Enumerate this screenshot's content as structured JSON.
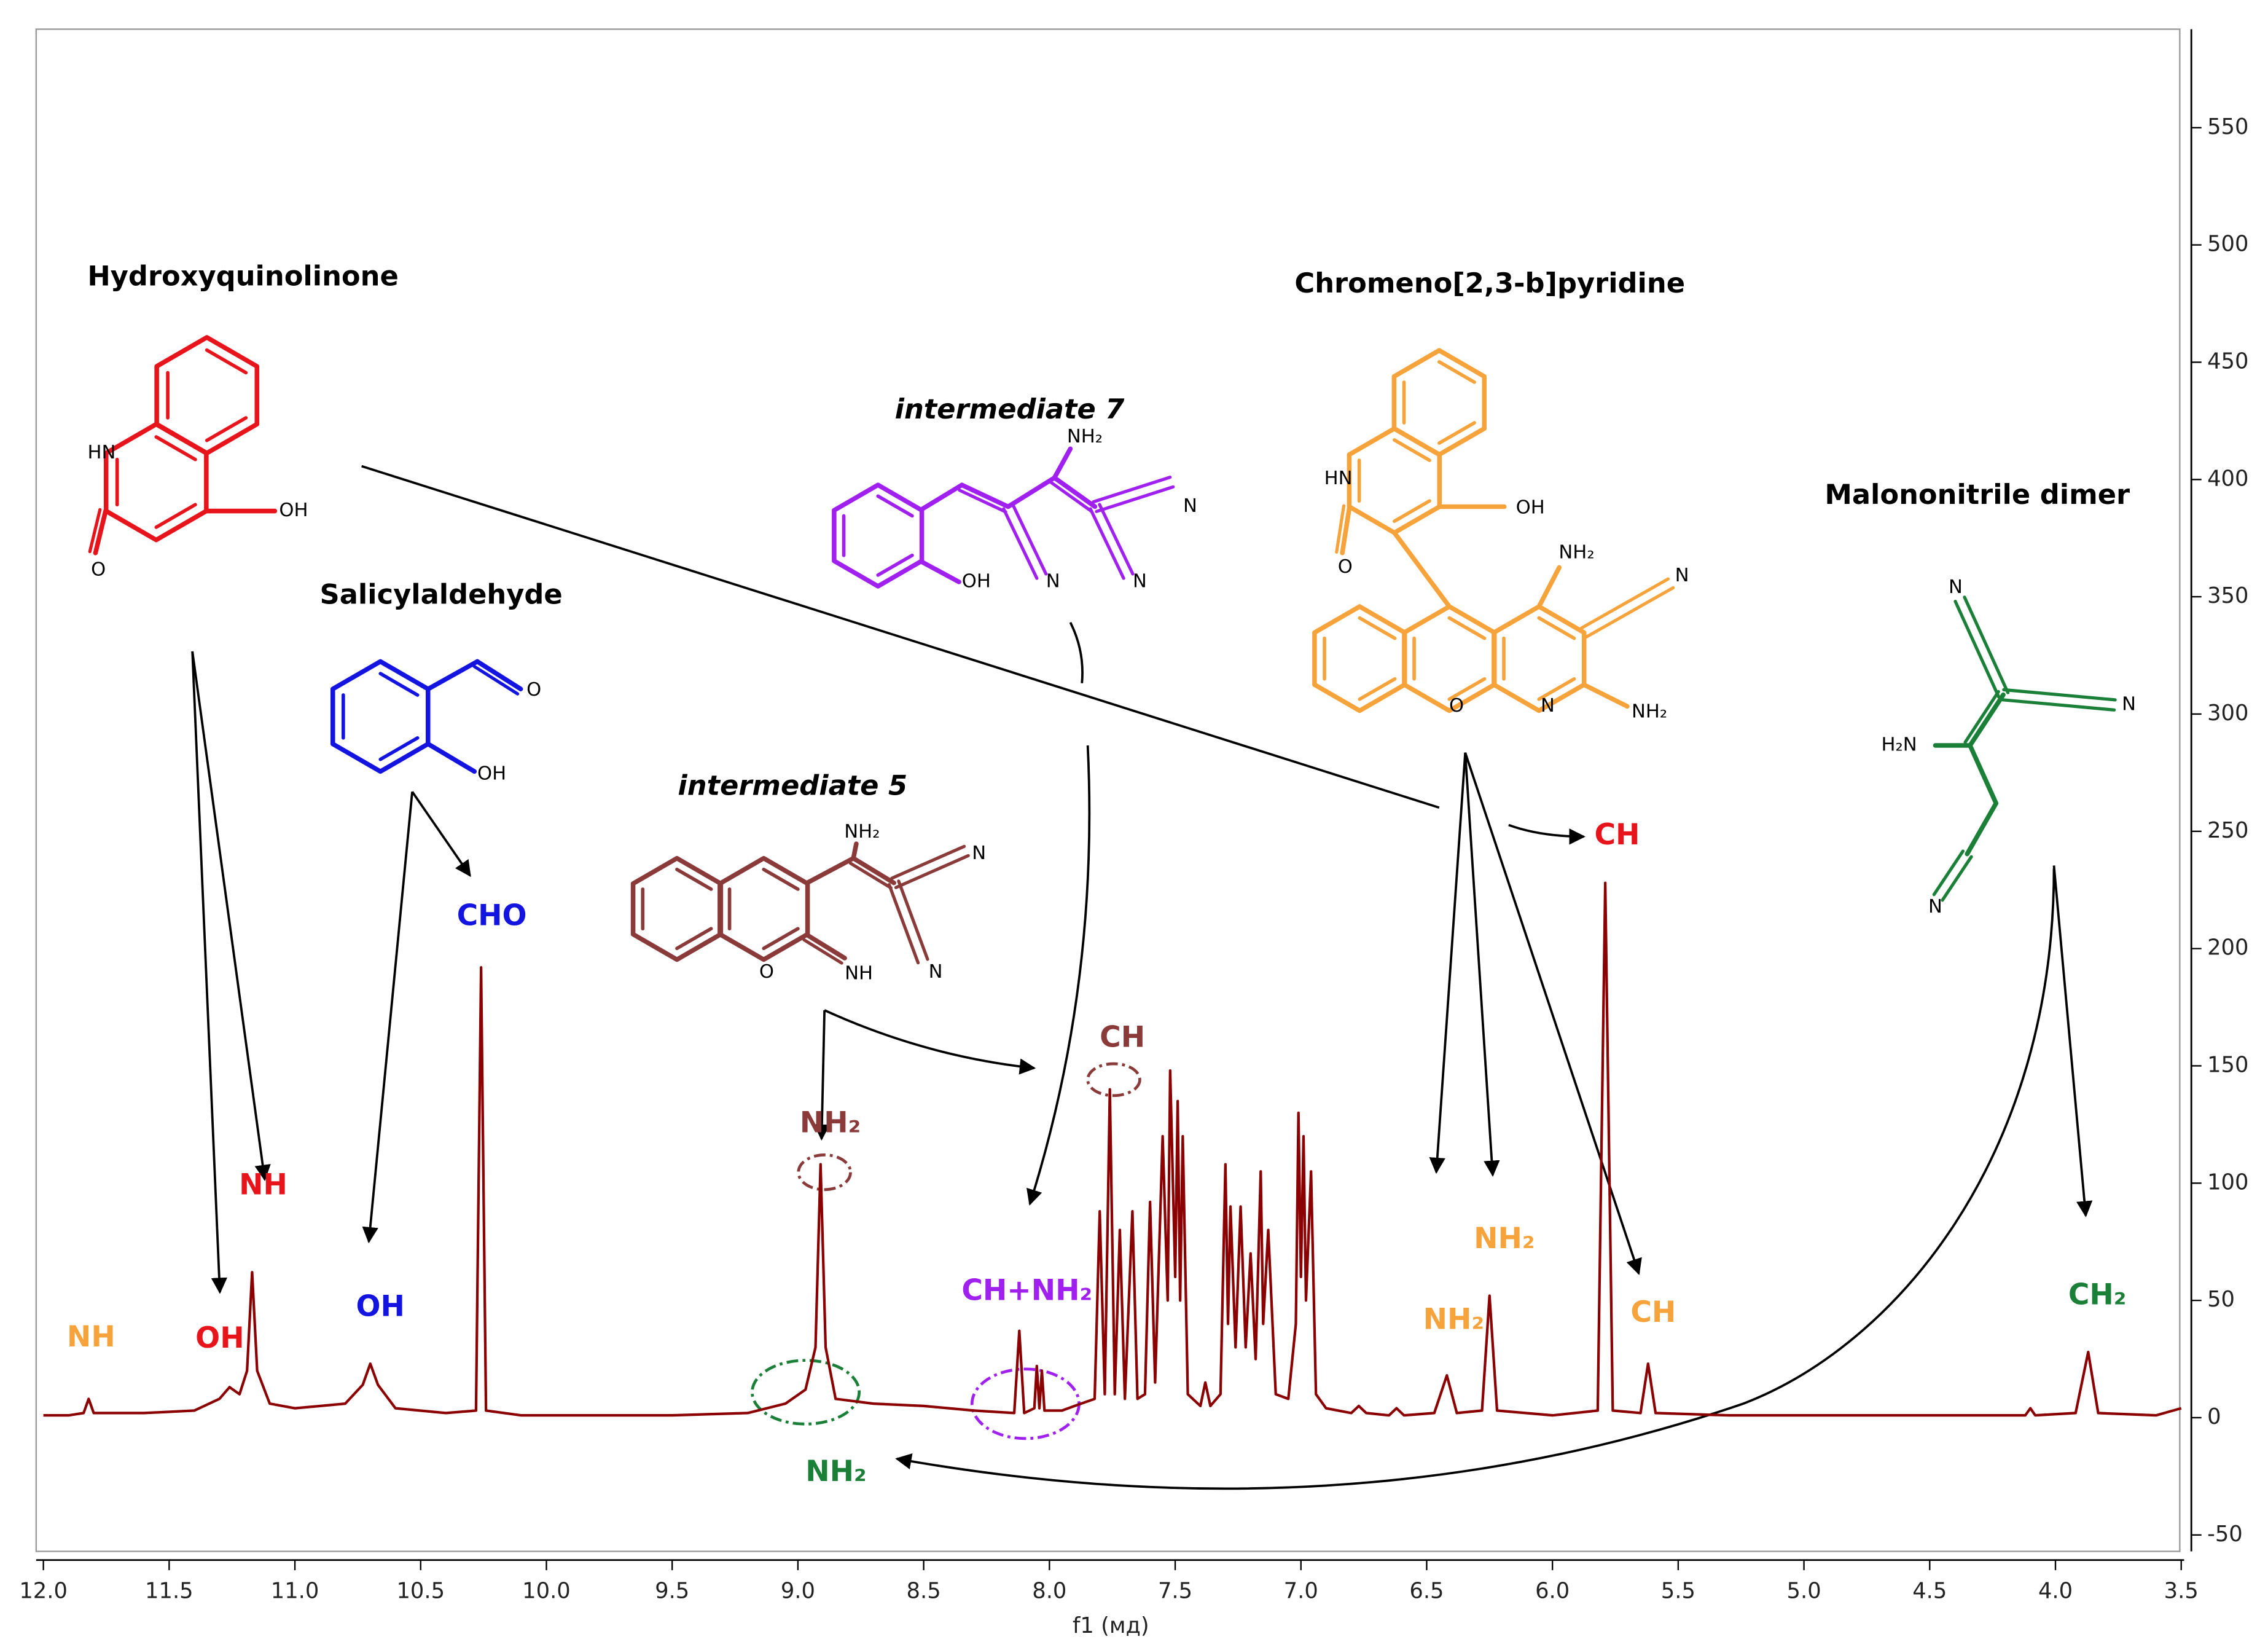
{
  "chart_data": {
    "type": "line",
    "x_label": "f1 (мд)",
    "xlim": [
      12.0,
      3.5
    ],
    "xticks": [
      {
        "value": 12.0,
        "label": "12.0"
      },
      11.5,
      {
        "value": 11.0,
        "label": "11.0"
      },
      10.5,
      {
        "value": 10.0,
        "label": "10.0"
      },
      9.5,
      {
        "value": 9.0,
        "label": "9.0"
      },
      8.5,
      {
        "value": 8.0,
        "label": "8.0"
      },
      7.5,
      {
        "value": 7.0,
        "label": "7.0"
      },
      6.5,
      {
        "value": 6.0,
        "label": "6.0"
      },
      5.5,
      {
        "value": 5.0,
        "label": "5.0"
      },
      4.5,
      {
        "value": 4.0,
        "label": "4.0"
      },
      3.5
    ],
    "ylim": [
      -57,
      592
    ],
    "yticks": [
      -50,
      0,
      50,
      100,
      150,
      200,
      250,
      300,
      350,
      400,
      450,
      500,
      550
    ],
    "color": "#8b0000",
    "x": [
      12.0,
      11.9,
      11.84,
      11.82,
      11.8,
      11.6,
      11.4,
      11.3,
      11.26,
      11.22,
      11.19,
      11.17,
      11.15,
      11.1,
      11.0,
      10.8,
      10.73,
      10.7,
      10.67,
      10.6,
      10.4,
      10.28,
      10.26,
      10.24,
      10.1,
      9.95,
      9.5,
      9.2,
      9.05,
      8.97,
      8.93,
      8.91,
      8.89,
      8.85,
      8.7,
      8.5,
      8.3,
      8.14,
      8.12,
      8.1,
      8.06,
      8.05,
      8.04,
      8.03,
      8.02,
      7.95,
      7.9,
      7.82,
      7.8,
      7.78,
      7.76,
      7.74,
      7.72,
      7.7,
      7.67,
      7.65,
      7.62,
      7.6,
      7.58,
      7.55,
      7.53,
      7.52,
      7.5,
      7.49,
      7.48,
      7.47,
      7.45,
      7.4,
      7.38,
      7.36,
      7.32,
      7.3,
      7.29,
      7.28,
      7.26,
      7.24,
      7.22,
      7.2,
      7.18,
      7.16,
      7.15,
      7.13,
      7.1,
      7.05,
      7.02,
      7.01,
      7.0,
      6.99,
      6.98,
      6.96,
      6.94,
      6.9,
      6.8,
      6.77,
      6.74,
      6.65,
      6.62,
      6.59,
      6.47,
      6.42,
      6.38,
      6.28,
      6.25,
      6.22,
      6.0,
      5.82,
      5.79,
      5.76,
      5.65,
      5.62,
      5.59,
      5.3,
      5.0,
      4.5,
      4.12,
      4.1,
      4.08,
      3.92,
      3.87,
      3.83,
      3.6,
      3.5
    ],
    "values": [
      1,
      1,
      2,
      8,
      2,
      2,
      3,
      8,
      13,
      10,
      20,
      62,
      20,
      6,
      4,
      6,
      14,
      23,
      14,
      4,
      2,
      3,
      192,
      3,
      1,
      1,
      1,
      2,
      6,
      12,
      30,
      108,
      30,
      8,
      6,
      5,
      3,
      2,
      37,
      2,
      4,
      22,
      4,
      20,
      3,
      3,
      5,
      8,
      88,
      10,
      140,
      10,
      80,
      8,
      88,
      8,
      10,
      92,
      15,
      120,
      50,
      148,
      60,
      135,
      50,
      120,
      10,
      5,
      15,
      5,
      10,
      108,
      40,
      90,
      30,
      90,
      30,
      70,
      25,
      105,
      40,
      80,
      10,
      8,
      40,
      130,
      60,
      120,
      50,
      105,
      10,
      4,
      2,
      5,
      2,
      1,
      4,
      1,
      2,
      18,
      2,
      3,
      52,
      3,
      1,
      3,
      228,
      3,
      2,
      23,
      2,
      1,
      1,
      1,
      1,
      4,
      1,
      2,
      28,
      2,
      1,
      4
    ],
    "structures": [
      {
        "name": "Hydroxyquinolinone",
        "color": "#e8141c",
        "atoms": [
          "HN",
          "OH",
          "O"
        ]
      },
      {
        "name": "Salicylaldehyde",
        "color": "#1414e0",
        "atoms": [
          "O",
          "OH"
        ]
      },
      {
        "name": "intermediate 7",
        "color": "#a020f0",
        "atoms": [
          "NH₂",
          "N",
          "OH",
          "N",
          "N"
        ]
      },
      {
        "name": "intermediate 5",
        "color": "#8b3a3a",
        "atoms": [
          "NH₂",
          "N",
          "O",
          "NH",
          "N"
        ]
      },
      {
        "name": "Chromeno[2,3-b]pyridine",
        "color": "#f7a33c",
        "atoms": [
          "HN",
          "OH",
          "O",
          "NH₂",
          "N",
          "O",
          "N",
          "NH₂"
        ]
      },
      {
        "name": "Malononitrile dimer",
        "color": "#1a7f37",
        "atoms": [
          "N",
          "N",
          "H₂N",
          "N"
        ]
      }
    ],
    "peak_labels": [
      {
        "text": "NH",
        "color": "#f7a33c"
      },
      {
        "text": "OH",
        "color": "#e8141c"
      },
      {
        "text": "NH",
        "color": "#e8141c"
      },
      {
        "text": "OH",
        "color": "#1414e0"
      },
      {
        "text": "CHO",
        "color": "#1414e0"
      },
      {
        "text": "NH₂",
        "color": "#8b3a3a"
      },
      {
        "text": "CH+NH₂",
        "color": "#a020f0"
      },
      {
        "text": "CH",
        "color": "#8b3a3a"
      },
      {
        "text": "NH₂",
        "color": "#1a7f37"
      },
      {
        "text": "NH₂",
        "color": "#f7a33c"
      },
      {
        "text": "NH₂",
        "color": "#f7a33c"
      },
      {
        "text": "CH",
        "color": "#e8141c"
      },
      {
        "text": "CH",
        "color": "#f7a33c"
      },
      {
        "text": "CH₂",
        "color": "#1a7f37"
      }
    ]
  }
}
